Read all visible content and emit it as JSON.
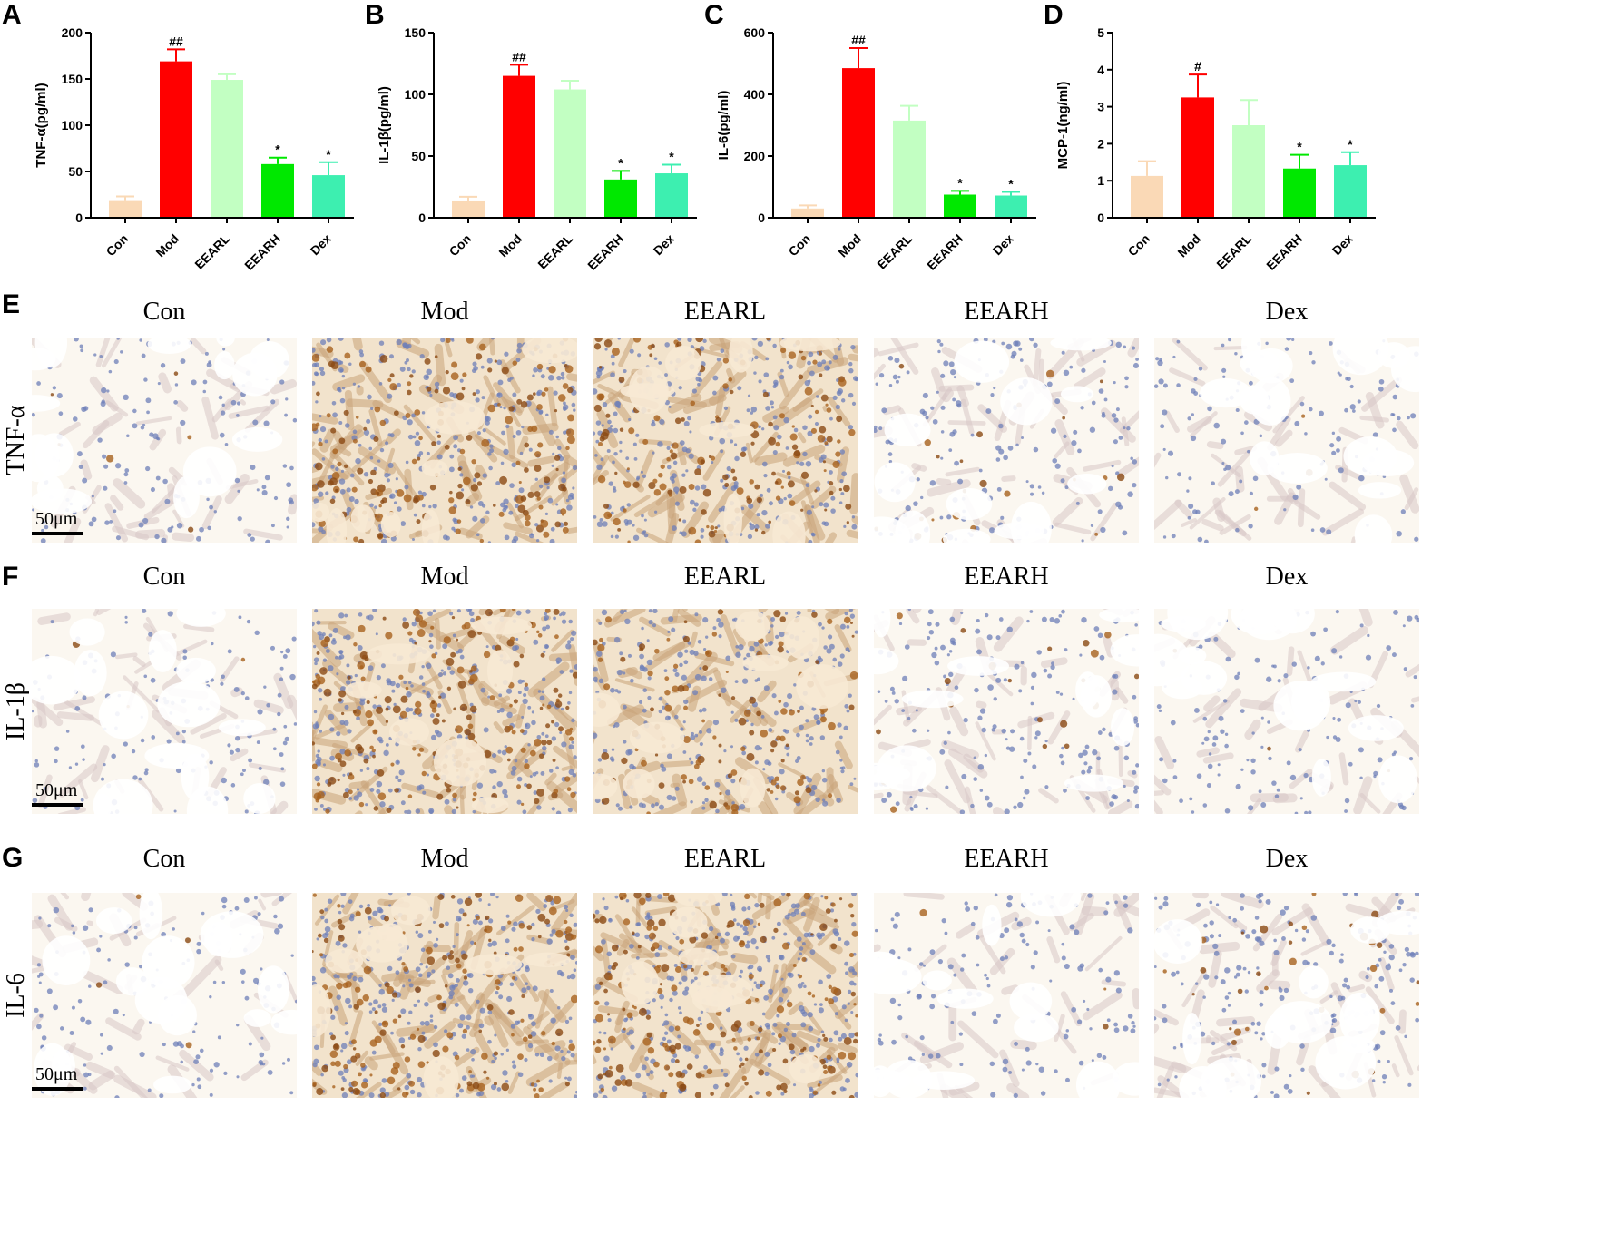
{
  "chart_data": [
    {
      "type": "bar",
      "panel": "A",
      "ylabel": "TNF-α(pg/ml)",
      "categories": [
        "Con",
        "Mod",
        "EEARL",
        "EEARH",
        "Dex"
      ],
      "values": [
        19,
        169,
        149,
        58,
        46
      ],
      "errors": [
        4,
        13,
        6,
        7,
        14
      ],
      "significance": [
        "",
        "##",
        "",
        "*",
        "*"
      ],
      "ylim": [
        0,
        200
      ],
      "yticks": [
        0,
        50,
        100,
        150,
        200
      ],
      "colors": [
        "#FAD9B6",
        "#FF0000",
        "#C2FFC2",
        "#00E800",
        "#3DEFB0"
      ]
    },
    {
      "type": "bar",
      "panel": "B",
      "ylabel": "IL-1β(pg/ml)",
      "categories": [
        "Con",
        "Mod",
        "EEARL",
        "EEARH",
        "Dex"
      ],
      "values": [
        14,
        115,
        104,
        31,
        36
      ],
      "errors": [
        3,
        9,
        7,
        7,
        7
      ],
      "significance": [
        "",
        "##",
        "",
        "*",
        "*"
      ],
      "ylim": [
        0,
        150
      ],
      "yticks": [
        0,
        50,
        100,
        150
      ],
      "colors": [
        "#FAD9B6",
        "#FF0000",
        "#C2FFC2",
        "#00E800",
        "#3DEFB0"
      ]
    },
    {
      "type": "bar",
      "panel": "C",
      "ylabel": "IL-6(pg/ml)",
      "categories": [
        "Con",
        "Mod",
        "EEARL",
        "EEARH",
        "Dex"
      ],
      "values": [
        30,
        485,
        315,
        75,
        72
      ],
      "errors": [
        10,
        65,
        48,
        12,
        12
      ],
      "significance": [
        "",
        "##",
        "",
        "*",
        "*"
      ],
      "ylim": [
        0,
        600
      ],
      "yticks": [
        0,
        200,
        400,
        600
      ],
      "colors": [
        "#FAD9B6",
        "#FF0000",
        "#C2FFC2",
        "#00E800",
        "#3DEFB0"
      ]
    },
    {
      "type": "bar",
      "panel": "D",
      "ylabel": "MCP-1(ng/ml)",
      "categories": [
        "Con",
        "Mod",
        "EEARL",
        "EEARH",
        "Dex"
      ],
      "values": [
        1.13,
        3.25,
        2.5,
        1.33,
        1.42
      ],
      "errors": [
        0.4,
        0.62,
        0.68,
        0.37,
        0.35
      ],
      "significance": [
        "",
        "#",
        "",
        "*",
        "*"
      ],
      "ylim": [
        0,
        5
      ],
      "yticks": [
        0,
        1,
        2,
        3,
        4,
        5
      ],
      "colors": [
        "#FAD9B6",
        "#FF0000",
        "#C2FFC2",
        "#00E800",
        "#3DEFB0"
      ]
    }
  ],
  "ihc": {
    "groups": [
      "Con",
      "Mod",
      "EEARL",
      "EEARH",
      "Dex"
    ],
    "scale_label": "50μm",
    "rows": [
      {
        "panel": "E",
        "marker": "TNF-α",
        "stain_level": [
          0.15,
          0.85,
          0.8,
          0.3,
          0.1
        ]
      },
      {
        "panel": "F",
        "marker": "IL-1β",
        "stain_level": [
          0.1,
          0.9,
          0.7,
          0.3,
          0.12
        ]
      },
      {
        "panel": "G",
        "marker": "IL-6",
        "stain_level": [
          0.12,
          0.85,
          0.9,
          0.1,
          0.35
        ]
      }
    ]
  }
}
